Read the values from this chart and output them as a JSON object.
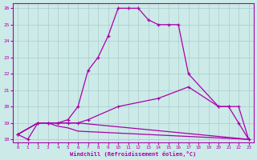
{
  "xlabel": "Windchill (Refroidissement éolien,°C)",
  "xlim": [
    -0.5,
    23.5
  ],
  "ylim": [
    17.8,
    26.3
  ],
  "yticks": [
    18,
    19,
    20,
    21,
    22,
    23,
    24,
    25,
    26
  ],
  "xticks": [
    0,
    1,
    2,
    3,
    4,
    5,
    6,
    7,
    8,
    9,
    10,
    11,
    12,
    13,
    14,
    15,
    16,
    17,
    18,
    19,
    20,
    21,
    22,
    23
  ],
  "bg_color": "#cceae8",
  "line_color": "#aa00aa",
  "grid_color": "#aacccc",
  "series1_x": [
    0,
    1,
    2,
    3,
    4,
    5,
    6,
    7,
    8,
    9,
    10,
    11,
    12,
    13,
    14,
    15,
    16,
    17,
    20,
    21,
    22,
    23
  ],
  "series1_y": [
    18.3,
    18.0,
    19.0,
    19.0,
    19.0,
    19.2,
    20.0,
    22.2,
    23.0,
    24.3,
    26.0,
    26.0,
    26.0,
    25.3,
    25.0,
    25.0,
    25.0,
    22.0,
    20.0,
    20.0,
    19.0,
    18.0
  ],
  "series2_x": [
    0,
    2,
    3,
    4,
    5,
    6,
    7,
    10,
    14,
    17,
    20,
    21,
    22,
    23
  ],
  "series2_y": [
    18.3,
    19.0,
    19.0,
    19.0,
    19.0,
    19.0,
    19.2,
    20.0,
    20.5,
    21.2,
    20.0,
    20.0,
    20.0,
    18.0
  ],
  "series3_x": [
    0,
    2,
    3,
    4,
    5,
    6,
    23
  ],
  "series3_y": [
    18.3,
    19.0,
    19.0,
    19.0,
    19.0,
    19.0,
    18.0
  ],
  "series4_x": [
    0,
    2,
    3,
    4,
    5,
    6,
    23
  ],
  "series4_y": [
    18.3,
    19.0,
    19.0,
    18.8,
    18.7,
    18.5,
    18.0
  ]
}
